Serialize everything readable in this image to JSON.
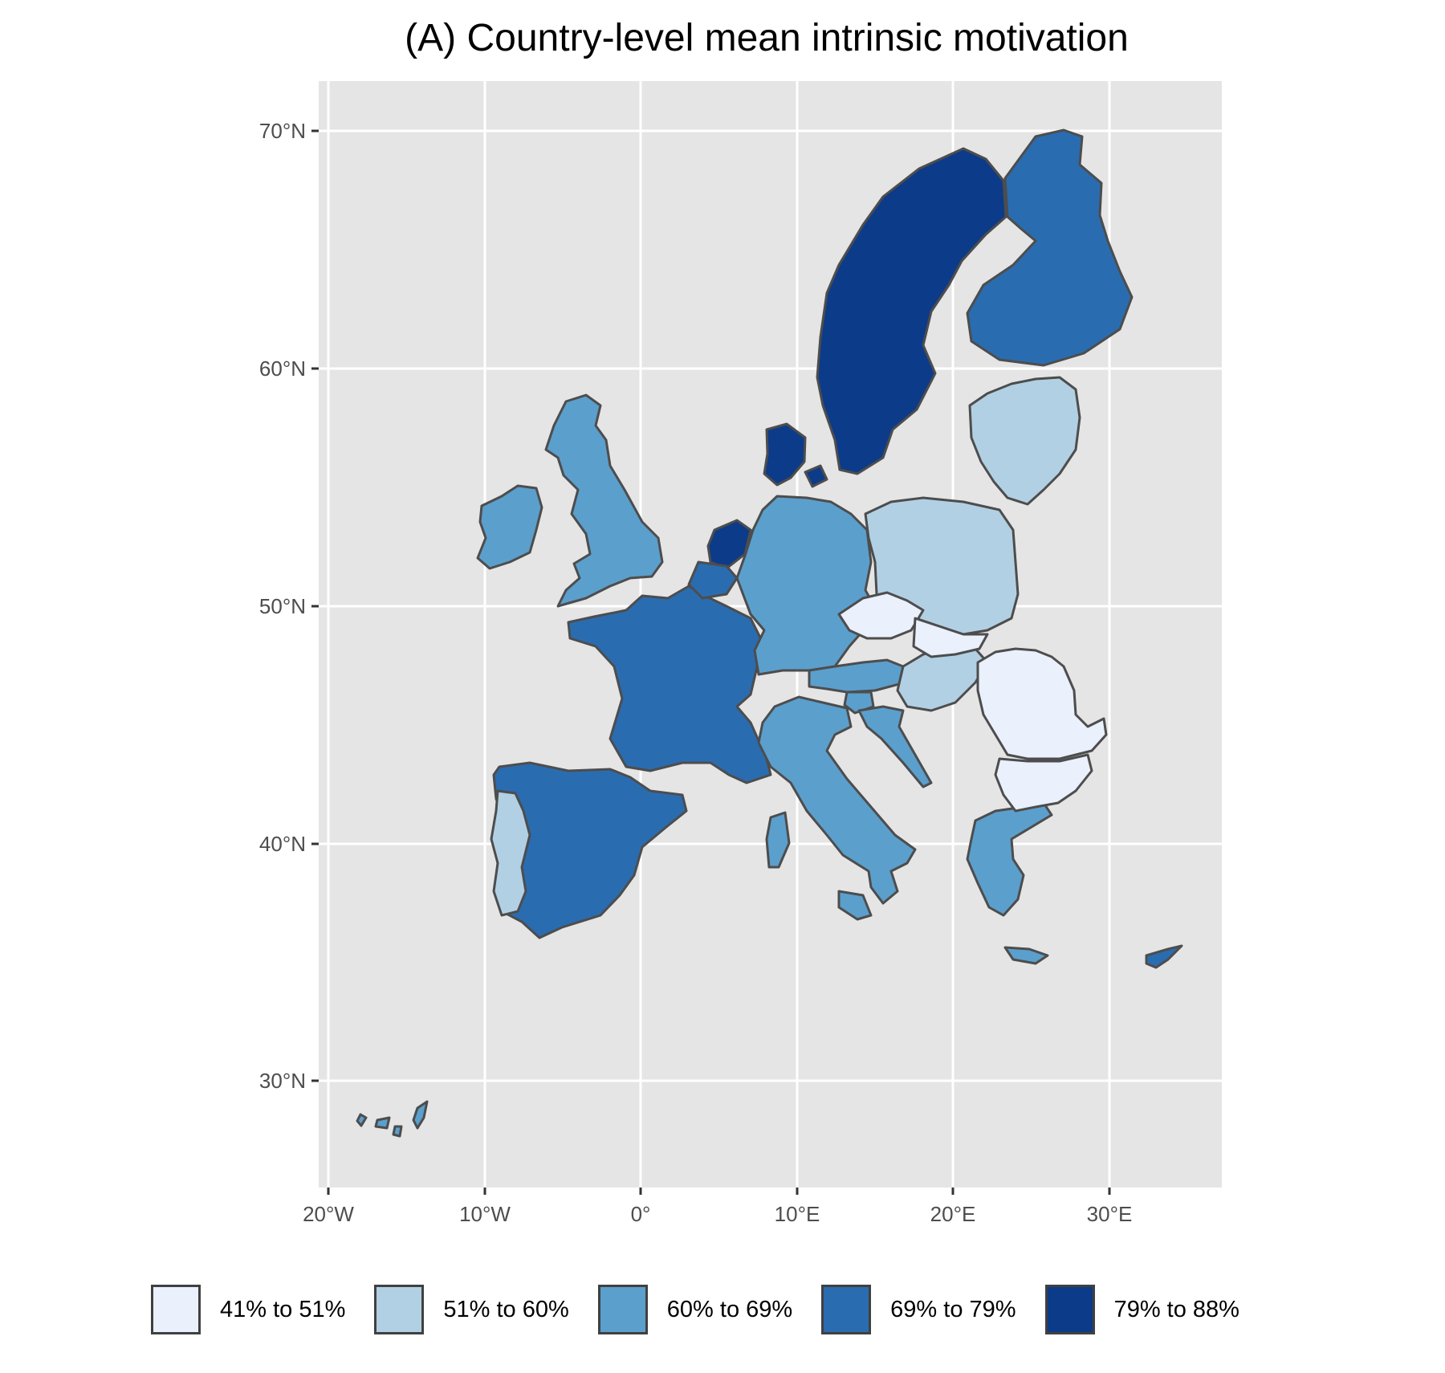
{
  "title": "(A) Country-level mean intrinsic motivation",
  "axes": {
    "x_ticks": [
      "20°W",
      "10°W",
      "0°",
      "10°E",
      "20°E",
      "30°E"
    ],
    "y_ticks": [
      "70°N",
      "60°N",
      "50°N",
      "40°N",
      "30°N"
    ]
  },
  "legend": [
    {
      "label": "41% to 51%",
      "color": "#eaf0fc"
    },
    {
      "label": "51% to 60%",
      "color": "#b2d0e4"
    },
    {
      "label": "60% to 69%",
      "color": "#5b9fcd"
    },
    {
      "label": "69% to 79%",
      "color": "#2a6cb0"
    },
    {
      "label": "79% to 88%",
      "color": "#0c3b89"
    }
  ],
  "colors": {
    "panel": "#e5e5e5",
    "grid": "#ffffff",
    "border": "#4d4d4d"
  },
  "regions": [
    {
      "name": "Sweden",
      "class": 4
    },
    {
      "name": "Denmark",
      "class": 4
    },
    {
      "name": "Netherlands",
      "class": 4
    },
    {
      "name": "Finland",
      "class": 3
    },
    {
      "name": "France",
      "class": 3
    },
    {
      "name": "Spain",
      "class": 3
    },
    {
      "name": "Belgium",
      "class": 3
    },
    {
      "name": "Cyprus",
      "class": 3
    },
    {
      "name": "United Kingdom",
      "class": 2
    },
    {
      "name": "Ireland",
      "class": 2
    },
    {
      "name": "Germany",
      "class": 2
    },
    {
      "name": "Italy",
      "class": 2
    },
    {
      "name": "Austria",
      "class": 2
    },
    {
      "name": "Greece",
      "class": 2
    },
    {
      "name": "Canary Islands",
      "class": 2
    },
    {
      "name": "Slovenia",
      "class": 2
    },
    {
      "name": "Croatia",
      "class": 2
    },
    {
      "name": "Portugal",
      "class": 1
    },
    {
      "name": "Poland",
      "class": 1
    },
    {
      "name": "Baltics",
      "class": 1
    },
    {
      "name": "Hungary",
      "class": 1
    },
    {
      "name": "Czechia",
      "class": 0
    },
    {
      "name": "Slovakia",
      "class": 0
    },
    {
      "name": "Romania",
      "class": 0
    },
    {
      "name": "Bulgaria",
      "class": 0
    }
  ]
}
